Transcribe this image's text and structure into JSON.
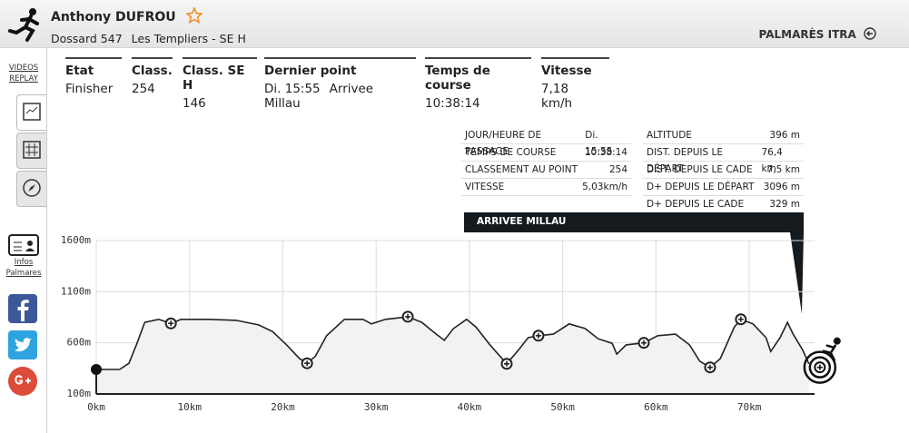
{
  "header": {
    "name": "Anthony DUFROU",
    "bib": "Dossard 547",
    "race": "Les Templiers - SE H",
    "palmares": "PALMARÈS ITRA"
  },
  "sidebar": {
    "videos_replay": "VIDEOS REPLAY",
    "infos_palmares": "Infos Palmares"
  },
  "stats": [
    {
      "label": "Etat",
      "values": [
        "Finisher"
      ]
    },
    {
      "label": "Class.",
      "values": [
        "254"
      ]
    },
    {
      "label": "Class. SE H",
      "values": [
        "146"
      ]
    },
    {
      "label": "Dernier point",
      "values": [
        "Di. 15:55",
        "Arrivee Millau"
      ]
    },
    {
      "label": "Temps de course",
      "values": [
        "10:38:14"
      ]
    },
    {
      "label": "Vitesse",
      "values": [
        "7,18 km/h"
      ]
    }
  ],
  "tooltip": {
    "left": [
      [
        "JOUR/HEURE DE PASSAGE",
        "Di. 15:55"
      ],
      [
        "TEMPS DE COURSE",
        "10:38:14"
      ],
      [
        "CLASSEMENT AU POINT",
        "254"
      ],
      [
        "VITESSE",
        "5,03km/h"
      ]
    ],
    "right": [
      [
        "ALTITUDE",
        "396 m"
      ],
      [
        "DIST. DEPUIS LE DÉPART",
        "76,4 km"
      ],
      [
        "DIST. DEPUIS LE CADE",
        "7,5 km"
      ],
      [
        "D+ DEPUIS LE DÉPART",
        "3096 m"
      ],
      [
        "D+ DEPUIS LE CADE",
        "329 m"
      ]
    ],
    "point": "ARRIVEE MILLAU"
  },
  "chart_data": {
    "type": "area",
    "color": "#222222",
    "fill": "#f2f2f2",
    "grid": true,
    "x": [
      0,
      2.5,
      3.5,
      4.3,
      5.2,
      6.7,
      8.0,
      9.1,
      12,
      15,
      17.4,
      18.9,
      20.4,
      21.8,
      22.6,
      23.5,
      24.7,
      26.6,
      28.6,
      29.5,
      31,
      32.5,
      33.4,
      34.9,
      36.1,
      37.3,
      38.3,
      39.7,
      40.7,
      42.2,
      44,
      45.3,
      46.3,
      47.4,
      49,
      50.7,
      52.4,
      53.8,
      55.3,
      55.8,
      56.8,
      58.7,
      60.2,
      62.1,
      63.6,
      64.7,
      65.8,
      66.9,
      68.4,
      69.1,
      70.4,
      71.8,
      72.3,
      73.3,
      74.1,
      74.7,
      75.7,
      76.4
    ],
    "values": [
      340,
      340,
      400,
      580,
      800,
      830,
      790,
      830,
      830,
      820,
      775,
      710,
      580,
      445,
      400,
      470,
      670,
      830,
      830,
      785,
      830,
      845,
      855,
      800,
      710,
      625,
      740,
      830,
      755,
      580,
      395,
      535,
      650,
      670,
      685,
      785,
      740,
      640,
      595,
      490,
      580,
      600,
      670,
      685,
      580,
      420,
      360,
      445,
      755,
      830,
      785,
      650,
      515,
      650,
      800,
      685,
      535,
      396
    ],
    "checkpoints": {
      "x": [
        8.0,
        22.6,
        33.4,
        44,
        47.4,
        58.7,
        65.8,
        69.1
      ],
      "values": [
        790,
        400,
        855,
        395,
        670,
        600,
        360,
        830
      ]
    },
    "xlim": [
      0,
      77
    ],
    "ylim": [
      100,
      1600
    ],
    "xticks": [
      {
        "value": 0,
        "label": "0km"
      },
      {
        "value": 10,
        "label": "10km"
      },
      {
        "value": 20,
        "label": "20km"
      },
      {
        "value": 30,
        "label": "30km"
      },
      {
        "value": 40,
        "label": "40km"
      },
      {
        "value": 50,
        "label": "50km"
      },
      {
        "value": 60,
        "label": "60km"
      },
      {
        "value": 70,
        "label": "70km"
      }
    ],
    "yticks": [
      {
        "value": 100,
        "label": "100m"
      },
      {
        "value": 600,
        "label": "600m"
      },
      {
        "value": 1100,
        "label": "1100m"
      },
      {
        "value": 1600,
        "label": "1600m"
      }
    ]
  }
}
